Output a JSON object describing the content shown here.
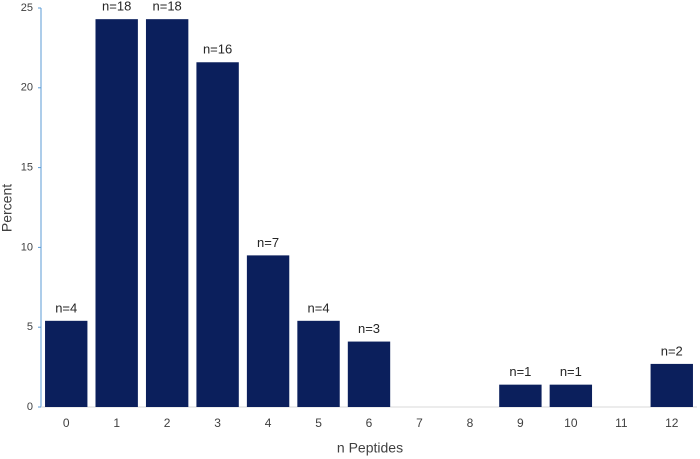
{
  "chart_data": {
    "type": "bar",
    "x_label": "n Peptides",
    "y_label": "Percent",
    "categories": [
      "0",
      "1",
      "2",
      "3",
      "4",
      "5",
      "6",
      "7",
      "8",
      "9",
      "10",
      "11",
      "12"
    ],
    "values": [
      5.4,
      24.3,
      24.3,
      21.6,
      9.5,
      5.4,
      4.1,
      0,
      0,
      1.4,
      1.4,
      0,
      2.7
    ],
    "bar_labels": [
      "n=4",
      "n=18",
      "n=18",
      "n=16",
      "n=7",
      "n=4",
      "n=3",
      null,
      null,
      "n=1",
      "n=1",
      null,
      "n=2"
    ],
    "color": "#0b1f5c",
    "ylim": [
      0,
      25
    ],
    "yticks": [
      0,
      5,
      10,
      15,
      20,
      25
    ],
    "grid": false
  }
}
